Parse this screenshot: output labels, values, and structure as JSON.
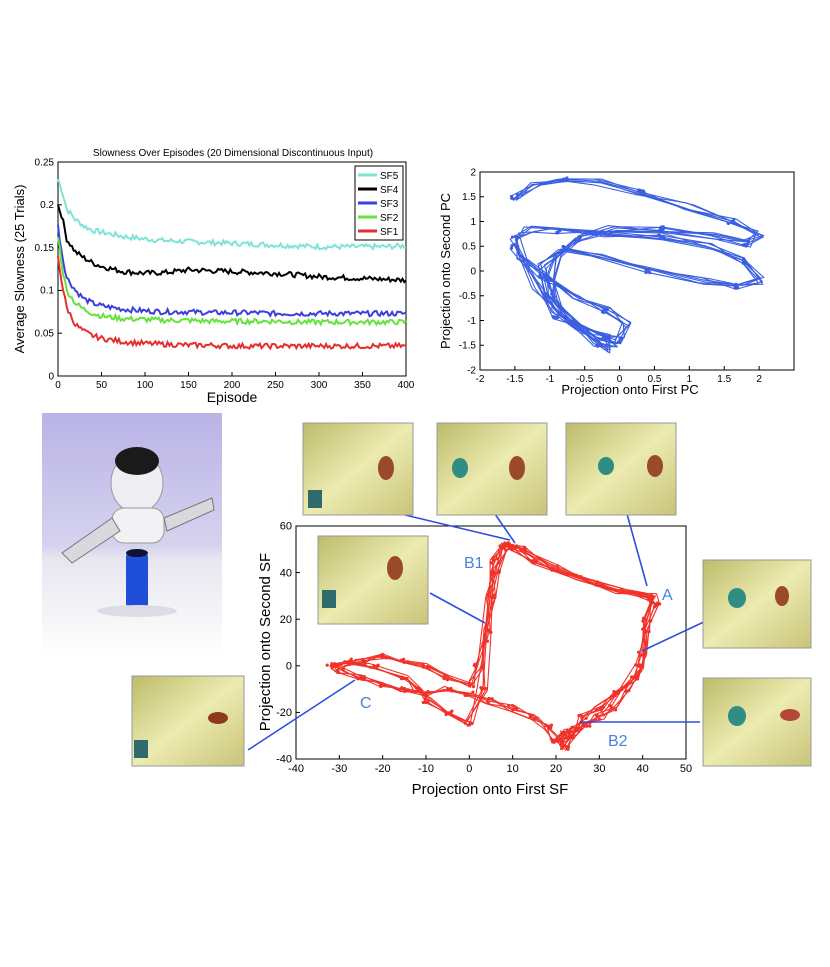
{
  "chart_data": [
    {
      "type": "line",
      "title": "Slowness Over Episodes (20 Dimensional Discontinuous Input)",
      "xlabel": "Episode",
      "ylabel": "Average Slowness (25 Trials)",
      "xlim": [
        0,
        400
      ],
      "ylim": [
        0,
        0.25
      ],
      "xticks": [
        0,
        50,
        100,
        150,
        200,
        250,
        300,
        350,
        400
      ],
      "yticks": [
        0,
        0.05,
        0.1,
        0.15,
        0.2,
        0.25
      ],
      "xtick_labels": [
        "0",
        "50",
        "100",
        "150",
        "200",
        "250",
        "300",
        "350",
        "400"
      ],
      "ytick_labels": [
        "0",
        "0.05",
        "0.1",
        "0.15",
        "0.2",
        "0.25"
      ],
      "legend_position": "top-right",
      "grid": false,
      "series": [
        {
          "name": "SF5",
          "color": "#7fe3d6",
          "x": [
            0,
            5,
            10,
            20,
            30,
            40,
            50,
            75,
            100,
            125,
            150,
            175,
            200,
            225,
            250,
            275,
            300,
            325,
            350,
            375,
            400
          ],
          "y": [
            0.23,
            0.215,
            0.195,
            0.183,
            0.175,
            0.17,
            0.168,
            0.163,
            0.16,
            0.158,
            0.157,
            0.156,
            0.155,
            0.154,
            0.153,
            0.152,
            0.151,
            0.151,
            0.151,
            0.151,
            0.152
          ]
        },
        {
          "name": "SF4",
          "color": "#000000",
          "x": [
            0,
            5,
            10,
            20,
            30,
            40,
            50,
            75,
            100,
            125,
            150,
            175,
            200,
            225,
            250,
            275,
            300,
            325,
            350,
            375,
            400
          ],
          "y": [
            0.2,
            0.185,
            0.16,
            0.145,
            0.138,
            0.132,
            0.128,
            0.122,
            0.12,
            0.121,
            0.124,
            0.123,
            0.122,
            0.121,
            0.12,
            0.118,
            0.116,
            0.115,
            0.114,
            0.113,
            0.112
          ]
        },
        {
          "name": "SF3",
          "color": "#3b3fe0",
          "x": [
            0,
            5,
            10,
            20,
            30,
            40,
            50,
            75,
            100,
            125,
            150,
            175,
            200,
            225,
            250,
            275,
            300,
            325,
            350,
            375,
            400
          ],
          "y": [
            0.175,
            0.14,
            0.115,
            0.1,
            0.09,
            0.085,
            0.082,
            0.078,
            0.076,
            0.075,
            0.075,
            0.074,
            0.074,
            0.074,
            0.073,
            0.073,
            0.073,
            0.073,
            0.073,
            0.073,
            0.073
          ]
        },
        {
          "name": "SF2",
          "color": "#63e33b",
          "x": [
            0,
            5,
            10,
            20,
            30,
            40,
            50,
            75,
            100,
            125,
            150,
            175,
            200,
            225,
            250,
            275,
            300,
            325,
            350,
            375,
            400
          ],
          "y": [
            0.165,
            0.125,
            0.1,
            0.085,
            0.078,
            0.073,
            0.07,
            0.067,
            0.066,
            0.065,
            0.065,
            0.064,
            0.064,
            0.064,
            0.064,
            0.063,
            0.063,
            0.063,
            0.063,
            0.063,
            0.063
          ]
        },
        {
          "name": "SF1",
          "color": "#e52f2f",
          "x": [
            0,
            5,
            10,
            20,
            30,
            40,
            50,
            75,
            100,
            125,
            150,
            175,
            200,
            225,
            250,
            275,
            300,
            325,
            350,
            375,
            400
          ],
          "y": [
            0.14,
            0.105,
            0.08,
            0.06,
            0.052,
            0.047,
            0.044,
            0.04,
            0.038,
            0.037,
            0.036,
            0.036,
            0.035,
            0.035,
            0.035,
            0.035,
            0.035,
            0.035,
            0.035,
            0.035,
            0.035
          ]
        }
      ]
    },
    {
      "type": "line",
      "xlabel": "Projection onto First PC",
      "ylabel": "Projection onto Second PC",
      "xlim": [
        -2,
        2.5
      ],
      "ylim": [
        -2,
        2
      ],
      "xticks": [
        -2,
        -1.5,
        -1,
        -0.5,
        0,
        0.5,
        1,
        1.5,
        2
      ],
      "yticks": [
        -2,
        -1.5,
        -1,
        -0.5,
        0,
        0.5,
        1,
        1.5,
        2
      ],
      "xtick_labels": [
        "-2",
        "-1.5",
        "-1",
        "-0.5",
        "0",
        "0.5",
        "1",
        "1.5",
        "2"
      ],
      "ytick_labels": [
        "-2",
        "-1.5",
        "-1",
        "-0.5",
        "0",
        "0.5",
        "1",
        "1.5",
        "2"
      ],
      "color": "#3a5fe0",
      "series": [
        {
          "x": [
            -1.5,
            -1.2,
            -0.8,
            -0.3,
            0.3,
            1.0,
            1.6,
            2.0,
            1.8,
            1.3,
            0.6,
            -0.1,
            -0.6,
            -0.9,
            -1.0,
            -0.9,
            -0.6,
            -0.3,
            0.0,
            0.1,
            -0.2,
            -0.6,
            -1.1,
            -1.4,
            -1.5,
            -1.3,
            -0.9,
            -0.2,
            0.6,
            1.3,
            1.8,
            2.0,
            1.7,
            1.2,
            0.4,
            -0.3,
            -0.8,
            -1.1,
            -1.0,
            -0.7,
            -0.3,
            -0.1,
            -0.2,
            -0.5,
            -0.9,
            -1.2,
            -1.5
          ],
          "y": [
            1.5,
            1.75,
            1.85,
            1.8,
            1.6,
            1.3,
            1.0,
            0.75,
            0.55,
            0.7,
            0.85,
            0.85,
            0.65,
            0.3,
            -0.2,
            -0.7,
            -1.1,
            -1.35,
            -1.4,
            -1.1,
            -0.8,
            -0.5,
            -0.1,
            0.3,
            0.7,
            0.85,
            0.8,
            0.75,
            0.7,
            0.5,
            0.2,
            -0.2,
            -0.3,
            -0.2,
            0.0,
            0.3,
            0.45,
            0.1,
            -0.5,
            -1.0,
            -1.5,
            -1.6,
            -1.3,
            -1.2,
            -0.9,
            -0.3,
            0.5
          ]
        }
      ]
    },
    {
      "type": "line",
      "xlabel": "Projection onto First SF",
      "ylabel": "Projection onto Second SF",
      "xlim": [
        -40,
        50
      ],
      "ylim": [
        -40,
        60
      ],
      "xticks": [
        -40,
        -30,
        -20,
        -10,
        0,
        10,
        20,
        30,
        40,
        50
      ],
      "yticks": [
        -40,
        -20,
        0,
        20,
        40,
        60
      ],
      "xtick_labels": [
        "-40",
        "-30",
        "-20",
        "-10",
        "0",
        "10",
        "20",
        "30",
        "40",
        "50"
      ],
      "ytick_labels": [
        "-40",
        "-20",
        "0",
        "20",
        "40",
        "60"
      ],
      "color": "#f0322a",
      "series": [
        {
          "x": [
            -30,
            -25,
            -20,
            -15,
            -10,
            -5,
            0,
            2,
            4,
            5,
            6,
            8,
            10,
            12,
            20,
            30,
            40,
            42,
            41,
            40,
            38,
            34,
            30,
            26,
            24,
            22,
            20,
            18,
            15,
            10,
            5,
            0,
            -5,
            -10,
            -15,
            -20,
            -25,
            -30,
            -32,
            -28,
            -22,
            -15,
            -12,
            -10,
            -5,
            0,
            3,
            4,
            5,
            6,
            8,
            10,
            15,
            25,
            35,
            42,
            43,
            41,
            39,
            36,
            33,
            30,
            27,
            24,
            22,
            21,
            22
          ],
          "y": [
            0,
            2,
            4,
            2,
            0,
            -5,
            -8,
            0,
            15,
            30,
            40,
            50,
            52,
            50,
            42,
            35,
            30,
            28,
            20,
            5,
            -5,
            -12,
            -18,
            -22,
            -27,
            -30,
            -32,
            -26,
            -22,
            -18,
            -15,
            -12,
            -10,
            -12,
            -10,
            -8,
            -5,
            -2,
            0,
            2,
            0,
            -5,
            -10,
            -15,
            -20,
            -25,
            -10,
            10,
            30,
            45,
            52,
            50,
            45,
            38,
            32,
            30,
            26,
            15,
            0,
            -10,
            -18,
            -22,
            -25,
            -30,
            -35,
            -32,
            -28
          ]
        }
      ],
      "annotations": [
        "A",
        "B1",
        "B2",
        "C"
      ]
    }
  ],
  "colors": {
    "curve_blue": "#3a5fe0",
    "curve_red": "#f0322a",
    "label_blue": "#4a82d8",
    "photo_yellow": "#e3e08e"
  }
}
